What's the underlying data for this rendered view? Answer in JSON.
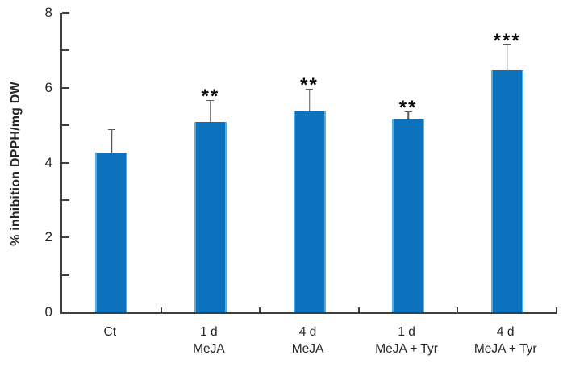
{
  "chart_data": {
    "type": "bar",
    "title": "",
    "xlabel": "",
    "ylabel": "% inhibition DPPH/mg DW",
    "ylim": [
      0,
      8
    ],
    "y_major_ticks": [
      0,
      2,
      4,
      6,
      8
    ],
    "y_minor_ticks": [
      1,
      3,
      5,
      7
    ],
    "grid": false,
    "legend_position": "none",
    "categories": [
      {
        "line1": "Ct",
        "line2": ""
      },
      {
        "line1": "1 d",
        "line2": "MeJA"
      },
      {
        "line1": "4 d",
        "line2": "MeJA"
      },
      {
        "line1": "1 d",
        "line2": "MeJA + Tyr"
      },
      {
        "line1": "4 d",
        "line2": "MeJA + Tyr"
      }
    ],
    "values": [
      4.28,
      5.1,
      5.37,
      5.16,
      6.46
    ],
    "errors_plus": [
      0.62,
      0.58,
      0.6,
      0.21,
      0.7
    ],
    "significance": [
      "",
      "**",
      "**",
      "**",
      "***"
    ],
    "colors": {
      "bar_fill": "#0c72be",
      "bar_edge": "#56aee0",
      "error_bar": "#595959",
      "axis": "#3f3f3f",
      "text": "#262626"
    }
  }
}
